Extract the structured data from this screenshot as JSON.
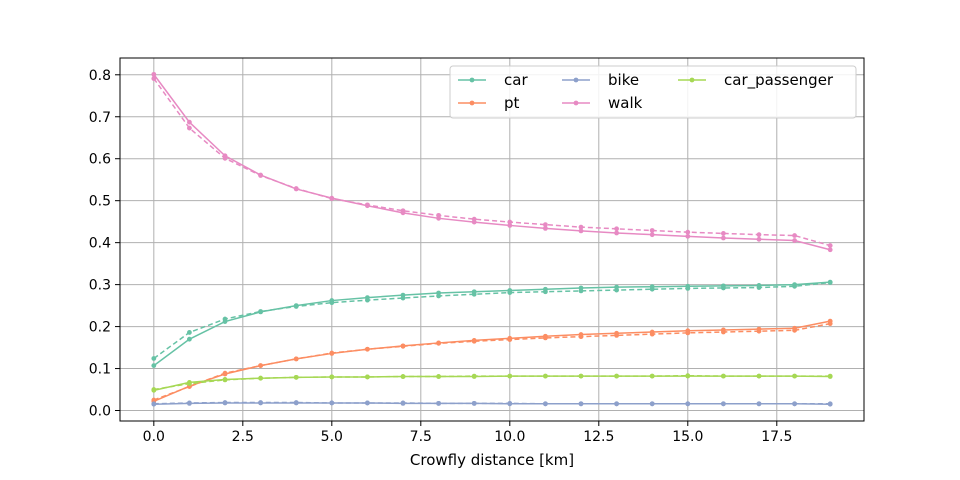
{
  "chart_data": {
    "type": "line",
    "title": "",
    "xlabel": "Crowfly distance [km]",
    "ylabel": "",
    "xlim": [
      -0.95,
      19.95
    ],
    "ylim": [
      -0.025,
      0.84
    ],
    "xticks": [
      0.0,
      2.5,
      5.0,
      7.5,
      10.0,
      12.5,
      15.0,
      17.5
    ],
    "xtick_labels": [
      "0.0",
      "2.5",
      "5.0",
      "7.5",
      "10.0",
      "12.5",
      "15.0",
      "17.5"
    ],
    "yticks": [
      0.0,
      0.1,
      0.2,
      0.3,
      0.4,
      0.5,
      0.6,
      0.7,
      0.8
    ],
    "ytick_labels": [
      "0.0",
      "0.1",
      "0.2",
      "0.3",
      "0.4",
      "0.5",
      "0.6",
      "0.7",
      "0.8"
    ],
    "grid": true,
    "legend": "top-right",
    "x": [
      0,
      1,
      2,
      3,
      4,
      5,
      6,
      7,
      8,
      9,
      10,
      11,
      12,
      13,
      14,
      15,
      16,
      17,
      18,
      19
    ],
    "series": [
      {
        "name": "car",
        "color": "#66c2a5",
        "solid": [
          0.107,
          0.17,
          0.212,
          0.235,
          0.25,
          0.262,
          0.269,
          0.275,
          0.28,
          0.283,
          0.286,
          0.289,
          0.292,
          0.294,
          0.295,
          0.296,
          0.297,
          0.298,
          0.3,
          0.306
        ],
        "dashed": [
          0.124,
          0.186,
          0.218,
          0.236,
          0.248,
          0.257,
          0.263,
          0.268,
          0.273,
          0.277,
          0.281,
          0.283,
          0.285,
          0.287,
          0.289,
          0.291,
          0.292,
          0.293,
          0.296,
          0.305
        ]
      },
      {
        "name": "pt",
        "color": "#fc8d62",
        "solid": [
          0.022,
          0.058,
          0.087,
          0.107,
          0.123,
          0.136,
          0.146,
          0.154,
          0.161,
          0.167,
          0.172,
          0.177,
          0.181,
          0.184,
          0.187,
          0.19,
          0.192,
          0.194,
          0.196,
          0.213
        ],
        "dashed": [
          0.025,
          0.057,
          0.089,
          0.107,
          0.123,
          0.137,
          0.146,
          0.153,
          0.16,
          0.165,
          0.169,
          0.173,
          0.176,
          0.179,
          0.182,
          0.185,
          0.187,
          0.189,
          0.191,
          0.207
        ]
      },
      {
        "name": "bike",
        "color": "#8da0cb",
        "solid": [
          0.015,
          0.017,
          0.018,
          0.018,
          0.018,
          0.018,
          0.018,
          0.017,
          0.017,
          0.017,
          0.016,
          0.016,
          0.016,
          0.016,
          0.016,
          0.016,
          0.016,
          0.016,
          0.016,
          0.015
        ],
        "dashed": [
          0.016,
          0.018,
          0.019,
          0.019,
          0.019,
          0.018,
          0.018,
          0.018,
          0.017,
          0.017,
          0.017,
          0.016,
          0.016,
          0.016,
          0.016,
          0.016,
          0.016,
          0.016,
          0.016,
          0.016
        ]
      },
      {
        "name": "walk",
        "color": "#e78ac3",
        "solid": [
          0.801,
          0.687,
          0.607,
          0.561,
          0.528,
          0.506,
          0.488,
          0.471,
          0.458,
          0.449,
          0.441,
          0.434,
          0.428,
          0.423,
          0.419,
          0.415,
          0.411,
          0.408,
          0.405,
          0.383
        ],
        "dashed": [
          0.791,
          0.673,
          0.601,
          0.56,
          0.529,
          0.505,
          0.49,
          0.476,
          0.465,
          0.456,
          0.449,
          0.443,
          0.437,
          0.433,
          0.429,
          0.425,
          0.422,
          0.419,
          0.417,
          0.393
        ]
      },
      {
        "name": "car_passenger",
        "color": "#a6d854",
        "solid": [
          0.048,
          0.067,
          0.074,
          0.077,
          0.079,
          0.08,
          0.08,
          0.081,
          0.081,
          0.081,
          0.082,
          0.082,
          0.082,
          0.082,
          0.082,
          0.082,
          0.082,
          0.082,
          0.082,
          0.081
        ],
        "dashed": [
          0.05,
          0.064,
          0.073,
          0.077,
          0.079,
          0.08,
          0.08,
          0.081,
          0.081,
          0.082,
          0.082,
          0.082,
          0.082,
          0.082,
          0.082,
          0.083,
          0.082,
          0.082,
          0.082,
          0.082
        ]
      }
    ]
  }
}
